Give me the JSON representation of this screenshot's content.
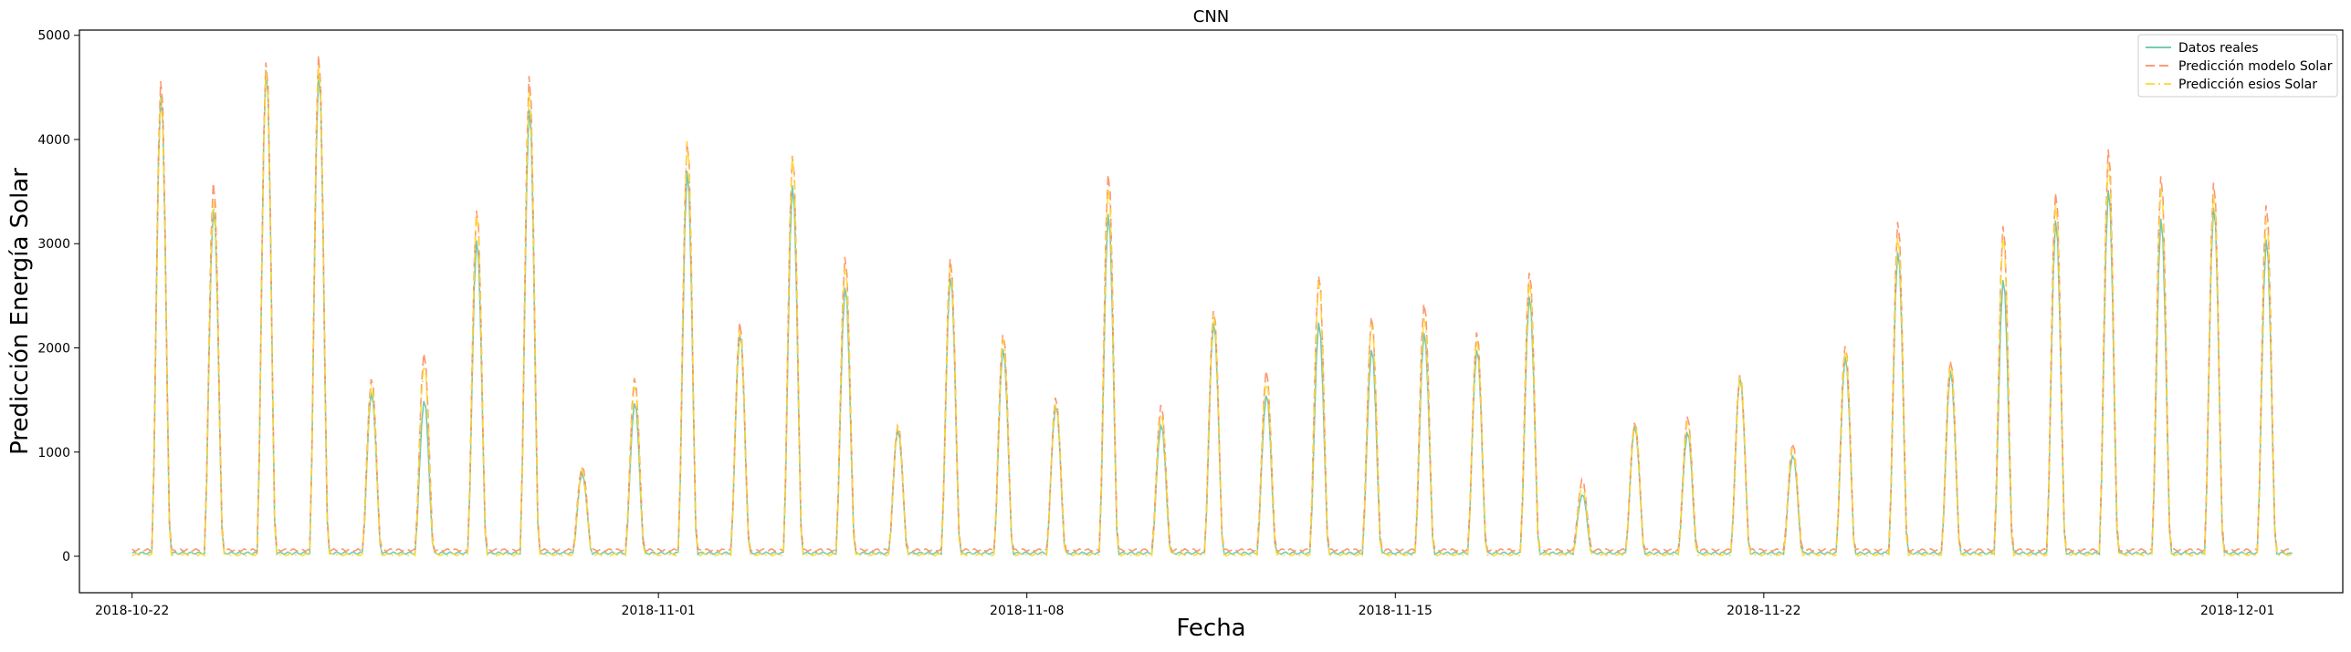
{
  "chart_data": {
    "type": "line",
    "title": "CNN",
    "xlabel": "Fecha",
    "ylabel": "Predicción Energía Solar",
    "xlim": [
      "2018-10-21",
      "2018-12-03"
    ],
    "ylim": [
      -350,
      5050
    ],
    "x_ticks": [
      {
        "date": "2018-10-22",
        "label": "2018-10-22"
      },
      {
        "date": "2018-11-01",
        "label": "2018-11-01"
      },
      {
        "date": "2018-11-08",
        "label": "2018-11-08"
      },
      {
        "date": "2018-11-15",
        "label": "2018-11-15"
      },
      {
        "date": "2018-11-22",
        "label": "2018-11-22"
      },
      {
        "date": "2018-12-01",
        "label": "2018-12-01"
      }
    ],
    "y_ticks": [
      0,
      1000,
      2000,
      3000,
      4000,
      5000
    ],
    "legend_position": "top-right",
    "grid": false,
    "daily_peaks": {
      "dates": [
        "2018-10-22",
        "2018-10-23",
        "2018-10-24",
        "2018-10-25",
        "2018-10-26",
        "2018-10-27",
        "2018-10-28",
        "2018-10-29",
        "2018-10-30",
        "2018-10-31",
        "2018-11-01",
        "2018-11-02",
        "2018-11-03",
        "2018-11-04",
        "2018-11-05",
        "2018-11-06",
        "2018-11-07",
        "2018-11-08",
        "2018-11-09",
        "2018-11-10",
        "2018-11-11",
        "2018-11-12",
        "2018-11-13",
        "2018-11-14",
        "2018-11-15",
        "2018-11-16",
        "2018-11-17",
        "2018-11-18",
        "2018-11-19",
        "2018-11-20",
        "2018-11-21",
        "2018-11-22",
        "2018-11-23",
        "2018-11-24",
        "2018-11-25",
        "2018-11-26",
        "2018-11-27",
        "2018-11-28",
        "2018-11-29",
        "2018-11-30",
        "2018-12-01",
        "2018-12-02"
      ],
      "series": [
        {
          "name": "Datos reales",
          "color": "#66c2a5",
          "dash": "solid",
          "values": [
            4450,
            3350,
            4700,
            4650,
            1580,
            1500,
            3050,
            4320,
            800,
            1480,
            3720,
            2150,
            3580,
            2600,
            1220,
            2700,
            2000,
            1450,
            3300,
            1270,
            2250,
            1560,
            2250,
            2000,
            2150,
            2000,
            2500,
            600,
            1250,
            1200,
            1720,
            980,
            1920,
            2950,
            1780,
            2680,
            3230,
            3550,
            3250,
            3380,
            3050,
            null
          ]
        },
        {
          "name": "Predicción modelo Solar",
          "color": "#fc8d62",
          "dash": "dashed",
          "values": [
            4600,
            3600,
            4780,
            4830,
            1720,
            1950,
            3350,
            4630,
            870,
            1710,
            4010,
            2250,
            3880,
            2880,
            1270,
            2860,
            2150,
            1520,
            3700,
            1450,
            2380,
            1780,
            2720,
            2300,
            2450,
            2150,
            2750,
            730,
            1300,
            1340,
            1760,
            1080,
            2040,
            3220,
            1900,
            3180,
            3520,
            3920,
            3680,
            3600,
            3400,
            null
          ]
        },
        {
          "name": "Predicción esios Solar",
          "color": "#ffd92f",
          "dash": "dashdot",
          "values": [
            4420,
            3450,
            4680,
            4750,
            1650,
            1850,
            3300,
            4500,
            830,
            1650,
            4000,
            2200,
            3850,
            2800,
            1250,
            2800,
            2100,
            1480,
            3550,
            1380,
            2330,
            1700,
            2650,
            2250,
            2300,
            2100,
            2650,
            680,
            1270,
            1300,
            1740,
            1050,
            2000,
            3100,
            1850,
            3100,
            3400,
            3800,
            3550,
            3500,
            3250,
            null
          ]
        }
      ],
      "night_baselines": [
        30,
        60,
        15
      ]
    }
  }
}
